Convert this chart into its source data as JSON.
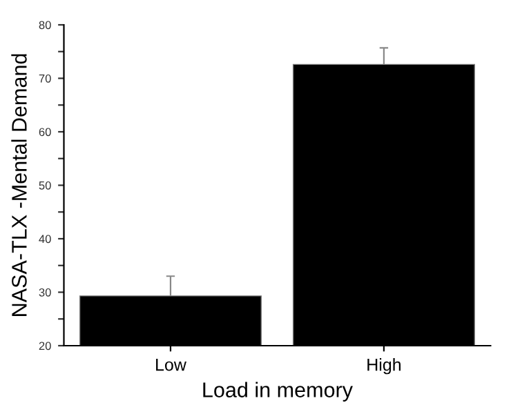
{
  "chart_data": {
    "type": "bar",
    "xlabel": "Load in memory",
    "ylabel": "NASA-TLX -Mental Demand",
    "categories": [
      "Low",
      "High"
    ],
    "values": [
      29.3,
      72.6
    ],
    "errors": [
      [
        29.3,
        33.0
      ],
      [
        72.6,
        75.7
      ]
    ],
    "color": "#000000",
    "ylim": [
      20,
      80
    ],
    "yticks": [
      20,
      {
        "value": 25,
        "label": null
      },
      30,
      {
        "value": 35,
        "label": null
      },
      40,
      {
        "value": 45,
        "label": null
      },
      50,
      {
        "value": 55,
        "label": null
      },
      60,
      {
        "value": 65,
        "label": null
      },
      70,
      {
        "value": 75,
        "label": null
      },
      80
    ],
    "grid": false,
    "legend": false
  }
}
